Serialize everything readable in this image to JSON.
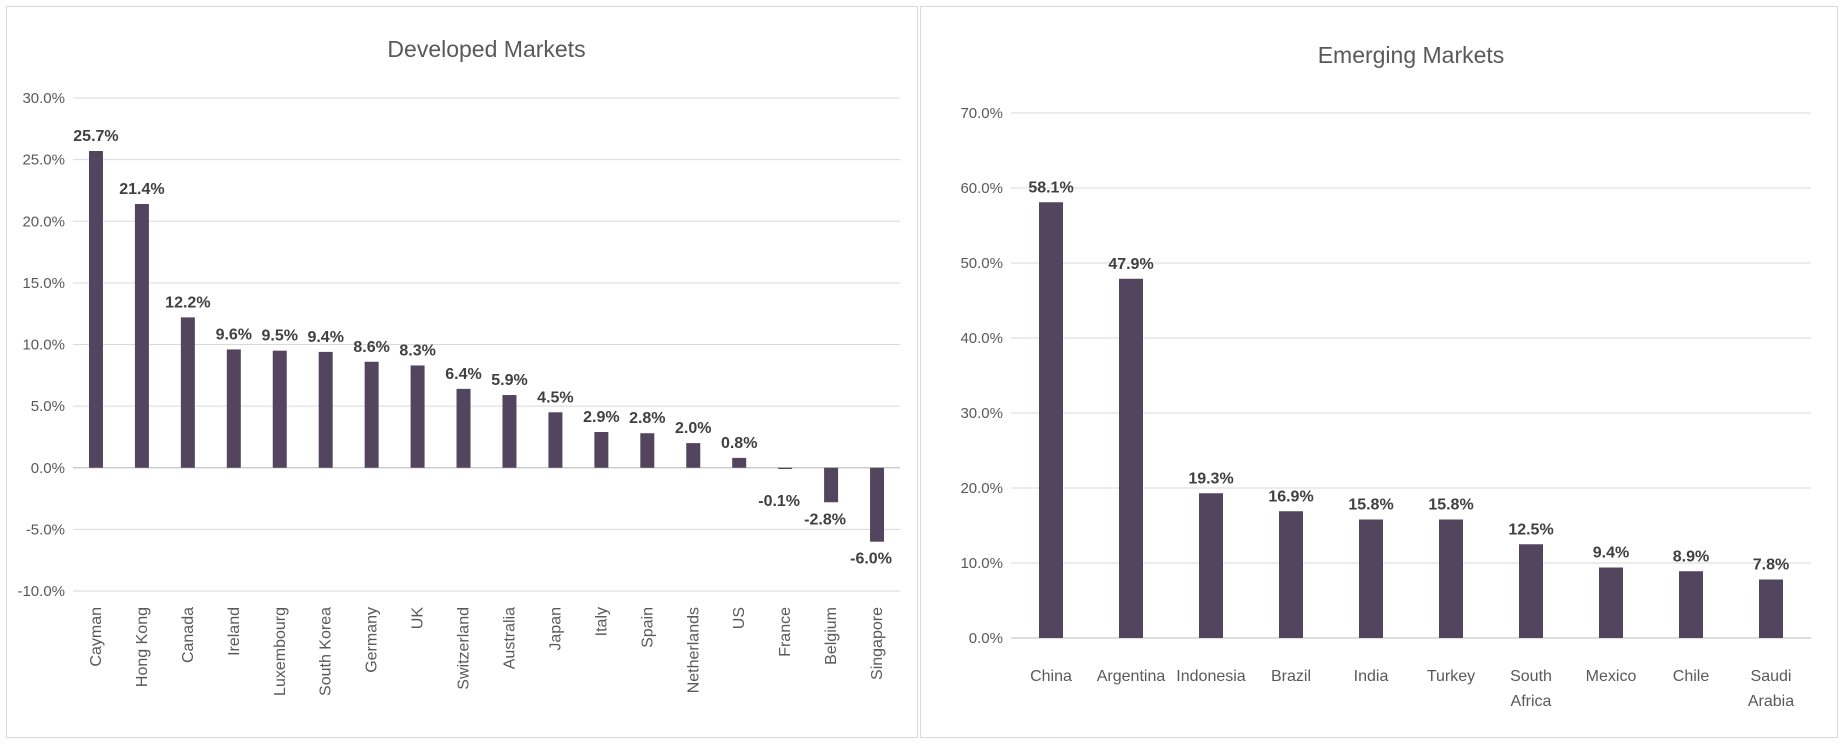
{
  "chart_data": [
    {
      "type": "bar",
      "title": "Developed Markets",
      "categories": [
        "Cayman",
        "Hong Kong",
        "Canada",
        "Ireland",
        "Luxembourg",
        "South Korea",
        "Germany",
        "UK",
        "Switzerland",
        "Australia",
        "Japan",
        "Italy",
        "Spain",
        "Netherlands",
        "US",
        "France",
        "Belgium",
        "Singapore"
      ],
      "values": [
        25.7,
        21.4,
        12.2,
        9.6,
        9.5,
        9.4,
        8.6,
        8.3,
        6.4,
        5.9,
        4.5,
        2.9,
        2.8,
        2.0,
        0.8,
        -0.1,
        -2.8,
        -6.0
      ],
      "value_labels": [
        "25.7%",
        "21.4%",
        "12.2%",
        "9.6%",
        "9.5%",
        "9.4%",
        "8.6%",
        "8.3%",
        "6.4%",
        "5.9%",
        "4.5%",
        "2.9%",
        "2.8%",
        "2.0%",
        "0.8%",
        "-0.1%",
        "-2.8%",
        "-6.0%"
      ],
      "ylim": [
        -10,
        30
      ],
      "yticks": [
        "30.0%",
        "25.0%",
        "20.0%",
        "15.0%",
        "10.0%",
        "5.0%",
        "0.0%",
        "-5.0%",
        "-10.0%"
      ],
      "grid": true,
      "legend": "none",
      "bar_color": "#54455e"
    },
    {
      "type": "bar",
      "title": "Emerging Markets",
      "categories": [
        "China",
        "Argentina",
        "Indonesia",
        "Brazil",
        "India",
        "Turkey",
        "South Africa",
        "Mexico",
        "Chile",
        "Saudi Arabia"
      ],
      "values": [
        58.1,
        47.9,
        19.3,
        16.9,
        15.8,
        15.8,
        12.5,
        9.4,
        8.9,
        7.8
      ],
      "value_labels": [
        "58.1%",
        "47.9%",
        "19.3%",
        "16.9%",
        "15.8%",
        "15.8%",
        "12.5%",
        "9.4%",
        "8.9%",
        "7.8%"
      ],
      "ylim": [
        0,
        70
      ],
      "yticks": [
        "70.0%",
        "60.0%",
        "50.0%",
        "40.0%",
        "30.0%",
        "20.0%",
        "10.0%",
        "0.0%"
      ],
      "grid": true,
      "legend": "none",
      "bar_color": "#54455e"
    }
  ]
}
